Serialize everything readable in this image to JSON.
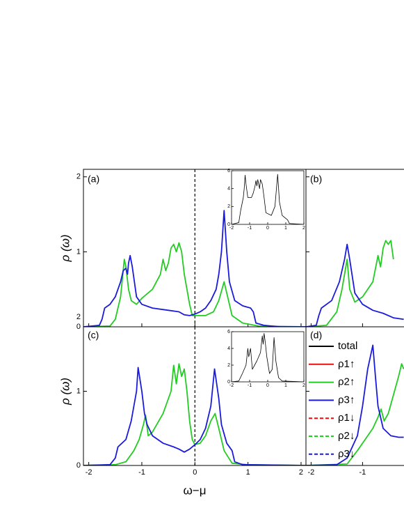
{
  "chart_data": [
    {
      "type": "line",
      "annotation": "(a)",
      "ylabel": "ρ (ω)",
      "xlim": [
        -2.1,
        2.1
      ],
      "ylim": [
        0,
        2.1
      ],
      "xticks": [
        -2,
        -1,
        0,
        1,
        2
      ],
      "yticks": [
        0,
        1,
        2
      ],
      "xtick_labels": false,
      "ytick_labels": true,
      "vline": 0,
      "series": [
        {
          "color": "#22cc22",
          "x": [
            -2.1,
            -1.6,
            -1.5,
            -1.4,
            -1.33,
            -1.3,
            -1.25,
            -1.2,
            -1.1,
            -1.0,
            -0.8,
            -0.65,
            -0.6,
            -0.55,
            -0.5,
            -0.45,
            -0.4,
            -0.35,
            -0.3,
            -0.25,
            -0.2,
            -0.1,
            -0.05,
            0,
            0.2,
            0.35,
            0.45,
            0.55,
            0.6,
            0.7,
            0.9,
            1.2,
            2.1
          ],
          "values": [
            0,
            0.01,
            0.1,
            0.4,
            0.9,
            0.8,
            0.5,
            0.35,
            0.3,
            0.38,
            0.5,
            0.7,
            0.9,
            0.75,
            0.85,
            1.05,
            1.1,
            1.0,
            1.12,
            1.0,
            0.7,
            0.3,
            0.15,
            0.15,
            0.15,
            0.2,
            0.35,
            0.6,
            0.45,
            0.15,
            0.05,
            0.01,
            0
          ]
        },
        {
          "color": "#1a1adc",
          "x": [
            -2.1,
            -1.8,
            -1.75,
            -1.7,
            -1.6,
            -1.5,
            -1.4,
            -1.35,
            -1.3,
            -1.27,
            -1.25,
            -1.22,
            -1.18,
            -1.1,
            -1.0,
            -0.8,
            -0.5,
            -0.3,
            -0.2,
            -0.1,
            0,
            0.1,
            0.2,
            0.3,
            0.4,
            0.45,
            0.5,
            0.55,
            0.6,
            0.65,
            0.75,
            0.9,
            1.05,
            1.1,
            1.15,
            1.3,
            1.6,
            2.1
          ],
          "values": [
            0,
            0.02,
            0.1,
            0.25,
            0.3,
            0.4,
            0.6,
            0.75,
            0.78,
            0.7,
            0.85,
            0.95,
            0.8,
            0.4,
            0.3,
            0.25,
            0.22,
            0.2,
            0.16,
            0.15,
            0.17,
            0.2,
            0.25,
            0.35,
            0.5,
            0.7,
            1.0,
            1.55,
            1.0,
            0.6,
            0.35,
            0.28,
            0.25,
            0.2,
            0.05,
            0.02,
            0,
            0
          ]
        }
      ]
    },
    {
      "type": "line",
      "annotation": "(b)",
      "xlim": [
        -2.1,
        2.1
      ],
      "ylim": [
        0,
        2.1
      ],
      "xticks": [
        -2,
        -1
      ],
      "yticks": [
        0,
        1,
        2
      ],
      "xtick_labels": false,
      "ytick_labels": false,
      "series": [
        {
          "color": "#22cc22",
          "x": [
            -2.1,
            -1.7,
            -1.5,
            -1.4,
            -1.3,
            -1.25,
            -1.15,
            -1.0,
            -0.8,
            -0.7,
            -0.65,
            -0.6,
            -0.55,
            -0.5,
            -0.45,
            -0.4
          ],
          "values": [
            0,
            0.02,
            0.2,
            0.5,
            0.9,
            0.5,
            0.33,
            0.4,
            0.6,
            0.95,
            0.8,
            1.05,
            1.15,
            1.1,
            1.15,
            0.9
          ]
        },
        {
          "color": "#1a1adc",
          "x": [
            -2.1,
            -1.9,
            -1.85,
            -1.8,
            -1.6,
            -1.45,
            -1.35,
            -1.3,
            -1.25,
            -1.15,
            -1.0,
            -0.8,
            -0.6,
            -0.4,
            -0.2
          ],
          "values": [
            0,
            0.02,
            0.15,
            0.25,
            0.35,
            0.6,
            0.9,
            1.1,
            0.9,
            0.45,
            0.3,
            0.22,
            0.18,
            0.12,
            0.1
          ]
        }
      ]
    },
    {
      "type": "line",
      "annotation": "(c)",
      "ylabel": "ρ (ω)",
      "xlabel": "ω−μ",
      "xlim": [
        -2.1,
        2.1
      ],
      "ylim": [
        0,
        2
      ],
      "xticks": [
        -2,
        -1,
        0,
        1,
        2
      ],
      "yticks": [
        0,
        1,
        2
      ],
      "xtick_labels": true,
      "ytick_labels": true,
      "vline": 0,
      "series": [
        {
          "color": "#22cc22",
          "x": [
            -2.1,
            -1.5,
            -1.3,
            -1.15,
            -1.05,
            -0.97,
            -0.93,
            -0.88,
            -0.8,
            -0.6,
            -0.45,
            -0.4,
            -0.35,
            -0.3,
            -0.25,
            -0.2,
            -0.15,
            -0.1,
            -0.05,
            0,
            0.1,
            0.2,
            0.3,
            0.38,
            0.45,
            0.55,
            0.7,
            1.0,
            2.1
          ],
          "values": [
            0,
            0.01,
            0.05,
            0.2,
            0.35,
            0.55,
            0.68,
            0.4,
            0.45,
            0.7,
            1.0,
            1.35,
            1.1,
            1.37,
            1.2,
            1.3,
            1.0,
            0.6,
            0.35,
            0.28,
            0.3,
            0.4,
            0.6,
            0.7,
            0.5,
            0.2,
            0.03,
            0.01,
            0
          ]
        },
        {
          "color": "#1a1adc",
          "x": [
            -2.1,
            -1.6,
            -1.5,
            -1.45,
            -1.3,
            -1.2,
            -1.1,
            -1.07,
            -1.0,
            -0.95,
            -0.9,
            -0.8,
            -0.6,
            -0.4,
            -0.3,
            -0.2,
            -0.1,
            0,
            0.1,
            0.2,
            0.3,
            0.37,
            0.45,
            0.5,
            0.6,
            0.7,
            0.75,
            0.9,
            2.1
          ],
          "values": [
            0,
            0.01,
            0.1,
            0.25,
            0.35,
            0.6,
            1.0,
            1.32,
            1.0,
            0.7,
            0.55,
            0.4,
            0.3,
            0.25,
            0.22,
            0.18,
            0.22,
            0.28,
            0.35,
            0.5,
            0.8,
            1.3,
            0.9,
            0.55,
            0.3,
            0.2,
            0.05,
            0.01,
            0
          ]
        }
      ]
    },
    {
      "type": "line",
      "annotation": "(d)",
      "xlim": [
        -2.1,
        2.1
      ],
      "ylim": [
        0,
        2
      ],
      "xticks": [
        -2,
        -1
      ],
      "yticks": [
        0,
        1,
        2
      ],
      "xtick_labels": true,
      "ytick_labels": false,
      "legend": [
        {
          "name": "total",
          "color": "#000000",
          "dashed": false
        },
        {
          "name": "ρ1↑",
          "color": "#e01010",
          "dashed": false
        },
        {
          "name": "ρ2↑",
          "color": "#22cc22",
          "dashed": false
        },
        {
          "name": "ρ3↑",
          "color": "#1a1adc",
          "dashed": false
        },
        {
          "name": "ρ1↓",
          "color": "#e01010",
          "dashed": true
        },
        {
          "name": "ρ2↓",
          "color": "#22cc22",
          "dashed": true
        },
        {
          "name": "ρ3↓",
          "color": "#1a1adc",
          "dashed": true
        }
      ],
      "series": [
        {
          "color": "#22cc22",
          "x": [
            -2.1,
            -1.3,
            -1.1,
            -0.95,
            -0.8,
            -0.7,
            -0.64,
            -0.58,
            -0.5,
            -0.4,
            -0.3,
            -0.24,
            -0.2
          ],
          "values": [
            0,
            0.02,
            0.2,
            0.35,
            0.5,
            0.65,
            0.76,
            0.6,
            0.7,
            0.95,
            1.2,
            1.37,
            1.3
          ]
        },
        {
          "color": "#1a1adc",
          "x": [
            -2.1,
            -1.5,
            -1.3,
            -1.1,
            -1.0,
            -0.9,
            -0.8,
            -0.75,
            -0.7,
            -0.6,
            -0.45,
            -0.3,
            -0.2
          ],
          "values": [
            0,
            0.01,
            0.1,
            0.4,
            0.8,
            1.3,
            1.62,
            1.2,
            0.8,
            0.5,
            0.4,
            0.38,
            0.38
          ]
        }
      ]
    },
    {
      "type": "line",
      "inset": true,
      "xlim": [
        -2,
        2
      ],
      "ylim": [
        0,
        6
      ],
      "xticks": [
        -2,
        -1,
        0,
        1,
        2
      ],
      "yticks": [
        0,
        2,
        4,
        6
      ],
      "xtick_labels": true,
      "ytick_labels": true,
      "series": [
        {
          "color": "#000000",
          "x": [
            -2,
            -1.6,
            -1.5,
            -1.35,
            -1.3,
            -1.25,
            -1.2,
            -1.1,
            -0.9,
            -0.8,
            -0.7,
            -0.65,
            -0.6,
            -0.55,
            -0.45,
            -0.4,
            -0.3,
            -0.2,
            -0.1,
            0.2,
            0.4,
            0.55,
            0.65,
            0.8,
            1.1,
            1.2,
            2
          ],
          "values": [
            0,
            0.2,
            1.5,
            3,
            4,
            5.5,
            4.5,
            3,
            3,
            3.5,
            4.3,
            4.9,
            4.3,
            5,
            4,
            5,
            4.5,
            3,
            1.3,
            1,
            2,
            5.6,
            2.5,
            1,
            0.5,
            0.1,
            0
          ]
        }
      ]
    },
    {
      "type": "line",
      "inset": true,
      "xlim": [
        -2,
        2
      ],
      "ylim": [
        0,
        6
      ],
      "xticks": [
        -2,
        -1,
        0,
        1,
        2
      ],
      "yticks": [
        0,
        2,
        4,
        6
      ],
      "xtick_labels": true,
      "ytick_labels": true,
      "series": [
        {
          "color": "#000000",
          "x": [
            -2,
            -1.6,
            -1.4,
            -1.2,
            -1.1,
            -1.05,
            -0.95,
            -0.85,
            -0.6,
            -0.4,
            -0.3,
            -0.25,
            -0.2,
            -0.15,
            -0.05,
            0.1,
            0.25,
            0.35,
            0.45,
            0.6,
            0.8,
            2
          ],
          "values": [
            0,
            0.1,
            1,
            2,
            4,
            3,
            4,
            1.5,
            2.5,
            3.5,
            5.5,
            4.5,
            5.8,
            5,
            3,
            1,
            1.5,
            5.3,
            2.5,
            0.5,
            0.1,
            0
          ]
        }
      ]
    }
  ]
}
